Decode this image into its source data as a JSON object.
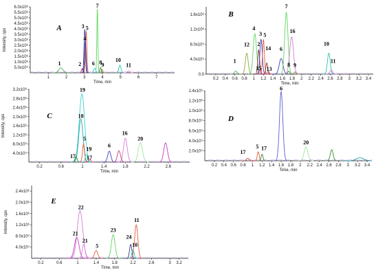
{
  "chart_data": [
    {
      "panel": "A",
      "type": "line",
      "xlabel": "Time, min",
      "ylabel": "Intensity, cps",
      "xlim": [
        0,
        8
      ],
      "ylim": [
        0,
        6000000
      ],
      "xticks": [
        1,
        2,
        3,
        4,
        5,
        6,
        7
      ],
      "yticks": [
        {
          "v": 500000,
          "t": "5.0x10⁵"
        },
        {
          "v": 1000000,
          "t": "1.0x10⁶"
        },
        {
          "v": 1500000,
          "t": "1.5x10⁶"
        },
        {
          "v": 2000000,
          "t": "2.0x10⁶"
        },
        {
          "v": 2500000,
          "t": "2.5x10⁶"
        },
        {
          "v": 3000000,
          "t": "3.0x10⁶"
        },
        {
          "v": 3500000,
          "t": "3.5x10⁶"
        },
        {
          "v": 4000000,
          "t": "4.0x10⁶"
        },
        {
          "v": 4500000,
          "t": "4.5x10⁶"
        },
        {
          "v": 5000000,
          "t": "5.0x10⁶"
        },
        {
          "v": 5500000,
          "t": "5.5x10⁶"
        },
        {
          "v": 6000000,
          "t": "6.0x10⁶"
        }
      ],
      "peaks": [
        {
          "label": "1",
          "x": 1.7,
          "y": 450000,
          "w": 0.12,
          "color": "#4caf50",
          "lx": 1.62,
          "ly": 700000
        },
        {
          "label": "2",
          "x": 2.88,
          "y": 380000,
          "w": 0.04,
          "color": "#8b2c2c",
          "lx": 2.75,
          "ly": 620000
        },
        {
          "label": "3",
          "x": 3.02,
          "y": 3950000,
          "w": 0.04,
          "color": "#3f3fbf",
          "lx": 2.92,
          "ly": 4050000
        },
        {
          "label": "5",
          "x": 3.1,
          "y": 3800000,
          "w": 0.04,
          "color": "#e05a3a",
          "lx": 3.15,
          "ly": 3900000
        },
        {
          "label": "4",
          "x": 3.05,
          "y": 2850000,
          "w": 0.04,
          "color": "#2f2f8f",
          "lx": 3.03,
          "ly": 2950000
        },
        {
          "label": "7",
          "x": 3.72,
          "y": 5800000,
          "w": 0.03,
          "color": "#5cd65c",
          "lx": 3.72,
          "ly": 5950000
        },
        {
          "label": "6",
          "x": 3.57,
          "y": 420000,
          "w": 0.06,
          "color": "#3ad1d1",
          "lx": 3.5,
          "ly": 680000
        },
        {
          "label": "8",
          "x": 3.9,
          "y": 480000,
          "w": 0.04,
          "color": "#2e8b2e",
          "lx": 3.9,
          "ly": 780000
        },
        {
          "label": "9",
          "x": 3.98,
          "y": 300000,
          "w": 0.04,
          "color": "#8f7a2e",
          "lx": 4.02,
          "ly": 560000
        },
        {
          "label": "10",
          "x": 4.97,
          "y": 700000,
          "w": 0.06,
          "color": "#26c6a6",
          "lx": 4.87,
          "ly": 1000000
        },
        {
          "label": "11",
          "x": 5.45,
          "y": 180000,
          "w": 0.06,
          "color": "#d67ad6",
          "lx": 5.45,
          "ly": 520000
        }
      ]
    },
    {
      "panel": "B",
      "type": "line",
      "xlabel": "Time, min",
      "ylabel": "",
      "xlim": [
        0,
        3.5
      ],
      "ylim": [
        0,
        1800000
      ],
      "xticks": [
        0.2,
        0.4,
        0.6,
        0.8,
        1.0,
        1.2,
        1.4,
        1.6,
        1.8,
        2.0,
        2.2,
        2.4,
        2.6,
        2.8,
        3.0,
        3.2,
        3.4
      ],
      "yticks": [
        {
          "v": 0,
          "t": "0.0"
        },
        {
          "v": 400000,
          "t": "4.0x10⁵"
        },
        {
          "v": 800000,
          "t": "8.0x10⁵"
        },
        {
          "v": 1200000,
          "t": "1.2x10⁶"
        },
        {
          "v": 1600000,
          "t": "1.6x10⁶"
        }
      ],
      "peaks": [
        {
          "label": "1",
          "x": 0.62,
          "y": 80000,
          "w": 0.03,
          "color": "#4caf50",
          "lx": 0.6,
          "ly": 300000
        },
        {
          "label": "12",
          "x": 0.85,
          "y": 560000,
          "w": 0.03,
          "color": "#8fa83a",
          "lx": 0.85,
          "ly": 740000
        },
        {
          "label": "4",
          "x": 1.02,
          "y": 1080000,
          "w": 0.035,
          "color": "#5cd65c",
          "lx": 1.0,
          "ly": 1180000
        },
        {
          "label": "2",
          "x": 1.1,
          "y": 650000,
          "w": 0.02,
          "color": "#8b2c2c",
          "lx": 1.1,
          "ly": 750000
        },
        {
          "label": "3",
          "x": 1.15,
          "y": 930000,
          "w": 0.025,
          "color": "#3f3fbf",
          "lx": 1.14,
          "ly": 1030000
        },
        {
          "label": "5",
          "x": 1.2,
          "y": 920000,
          "w": 0.02,
          "color": "#e05a3a",
          "lx": 1.23,
          "ly": 1000000
        },
        {
          "label": "15",
          "x": 1.13,
          "y": 120000,
          "w": 0.02,
          "color": "#c33c6e",
          "lx": 1.1,
          "ly": 110000
        },
        {
          "label": "14",
          "x": 1.27,
          "y": 300000,
          "w": 0.02,
          "color": "#8b2c2c",
          "lx": 1.3,
          "ly": 640000
        },
        {
          "label": "13",
          "x": 1.3,
          "y": 80000,
          "w": 0.02,
          "color": "#d04a4a",
          "lx": 1.32,
          "ly": 90000
        },
        {
          "label": "6",
          "x": 1.57,
          "y": 420000,
          "w": 0.04,
          "color": "#3f3fbf",
          "lx": 1.57,
          "ly": 620000
        },
        {
          "label": "7",
          "x": 1.68,
          "y": 1650000,
          "w": 0.035,
          "color": "#5cd65c",
          "lx": 1.68,
          "ly": 1760000
        },
        {
          "label": "16",
          "x": 1.79,
          "y": 1000000,
          "w": 0.04,
          "color": "#d67ad6",
          "lx": 1.81,
          "ly": 1100000
        },
        {
          "label": "8",
          "x": 1.73,
          "y": 80000,
          "w": 0.02,
          "color": "#2e8b2e",
          "lx": 1.73,
          "ly": 200000
        },
        {
          "label": "9",
          "x": 1.86,
          "y": 60000,
          "w": 0.02,
          "color": "#8f7a2e",
          "lx": 1.86,
          "ly": 190000
        },
        {
          "label": "10",
          "x": 2.57,
          "y": 560000,
          "w": 0.03,
          "color": "#26c6a6",
          "lx": 2.52,
          "ly": 760000
        },
        {
          "label": "11",
          "x": 2.62,
          "y": 110000,
          "w": 0.03,
          "color": "#d67ad6",
          "lx": 2.66,
          "ly": 300000
        }
      ]
    },
    {
      "panel": "C",
      "type": "line",
      "xlabel": "Time, min",
      "ylabel": "Intensity, cps",
      "xlim": [
        0,
        3
      ],
      "ylim": [
        0,
        3200000
      ],
      "xticks": [
        0.2,
        0.6,
        1.0,
        1.4,
        1.8,
        2.2,
        2.6
      ],
      "yticks": [
        {
          "v": 400000,
          "t": "4.0x10⁵"
        },
        {
          "v": 800000,
          "t": "8.0x10⁵"
        },
        {
          "v": 1200000,
          "t": "1.2x10⁶"
        },
        {
          "v": 1600000,
          "t": "1.6x10⁶"
        },
        {
          "v": 2000000,
          "t": "2.0x10⁶"
        },
        {
          "v": 2400000,
          "t": "2.4x10⁶"
        },
        {
          "v": 2800000,
          "t": "2.8x10⁶"
        },
        {
          "v": 3200000,
          "t": "3.2x10⁶"
        }
      ],
      "peaks": [
        {
          "label": "19",
          "x": 0.99,
          "y": 3000000,
          "w": 0.05,
          "color": "#3ad1d1",
          "lx": 1.0,
          "ly": 3100000
        },
        {
          "label": "18",
          "x": 0.97,
          "y": 1900000,
          "w": 0.04,
          "color": "#26a6a6",
          "lx": 0.97,
          "ly": 1950000
        },
        {
          "label": "5",
          "x": 1.02,
          "y": 800000,
          "w": 0.02,
          "color": "#e05a3a",
          "lx": 1.04,
          "ly": 950000
        },
        {
          "label": "19",
          "x": 1.07,
          "y": 350000,
          "w": 0.02,
          "color": "#3ad1d1",
          "lx": 1.12,
          "ly": 500000
        },
        {
          "label": "17",
          "x": 0.88,
          "y": 250000,
          "w": 0.02,
          "color": "#2e8b2e",
          "lx": 0.82,
          "ly": 180000
        },
        {
          "label": "17",
          "x": 1.14,
          "y": 120000,
          "w": 0.02,
          "color": "#d04a4a",
          "lx": 1.13,
          "ly": 120000
        },
        {
          "label": "6",
          "x": 1.5,
          "y": 480000,
          "w": 0.03,
          "color": "#3f3fbf",
          "lx": 1.5,
          "ly": 650000
        },
        {
          "label": "16",
          "x": 1.8,
          "y": 1050000,
          "w": 0.035,
          "color": "#d67ad6",
          "lx": 1.79,
          "ly": 1200000
        },
        {
          "label": "20",
          "x": 2.08,
          "y": 850000,
          "w": 0.04,
          "color": "#9ee89e",
          "lx": 2.08,
          "ly": 950000
        },
        {
          "label": "",
          "x": 1.68,
          "y": 500000,
          "w": 0.03,
          "color": "#c33c6e",
          "lx": 0,
          "ly": 0
        },
        {
          "label": "",
          "x": 2.55,
          "y": 850000,
          "w": 0.035,
          "color": "#c33cc3",
          "lx": 0,
          "ly": 0
        }
      ]
    },
    {
      "panel": "D",
      "type": "line",
      "xlabel": "Time, min",
      "ylabel": "",
      "xlim": [
        0,
        3.5
      ],
      "ylim": [
        0,
        1400000
      ],
      "xticks": [
        0.2,
        0.4,
        0.6,
        0.8,
        1.0,
        1.2,
        1.4,
        1.6,
        1.8,
        2.0,
        2.2,
        2.4,
        2.6,
        2.8,
        3.0,
        3.2,
        3.4
      ],
      "yticks": [
        {
          "v": 200000,
          "t": "2.0x10⁵"
        },
        {
          "v": 400000,
          "t": "4.0x10⁵"
        },
        {
          "v": 600000,
          "t": "6.0x10⁵"
        },
        {
          "v": 800000,
          "t": "8.0x10⁵"
        },
        {
          "v": 1000000,
          "t": "1.0x10⁶"
        },
        {
          "v": 1200000,
          "t": "1.2x10⁶"
        },
        {
          "v": 1400000,
          "t": "1.4x10⁶"
        }
      ],
      "peaks": [
        {
          "label": "6",
          "x": 1.6,
          "y": 1380000,
          "w": 0.035,
          "color": "#5a5ad6",
          "lx": 1.6,
          "ly": 1410000
        },
        {
          "label": "5",
          "x": 1.12,
          "y": 180000,
          "w": 0.02,
          "color": "#e05a3a",
          "lx": 1.1,
          "ly": 250000
        },
        {
          "label": "17",
          "x": 0.9,
          "y": 50000,
          "w": 0.03,
          "color": "#d04a4a",
          "lx": 0.8,
          "ly": 140000
        },
        {
          "label": "17",
          "x": 1.2,
          "y": 130000,
          "w": 0.02,
          "color": "#2e8b2e",
          "lx": 1.24,
          "ly": 210000
        },
        {
          "label": "20",
          "x": 2.12,
          "y": 280000,
          "w": 0.04,
          "color": "#9ee89e",
          "lx": 2.12,
          "ly": 330000
        },
        {
          "label": "",
          "x": 2.66,
          "y": 220000,
          "w": 0.03,
          "color": "#2e8b2e",
          "lx": 0,
          "ly": 0
        },
        {
          "label": "",
          "x": 3.25,
          "y": 60000,
          "w": 0.08,
          "color": "#26a6a6",
          "lx": 0,
          "ly": 0
        }
      ]
    },
    {
      "panel": "E",
      "type": "line",
      "xlabel": "Time, min",
      "ylabel": "Intensity, cps",
      "xlim": [
        0,
        3.4
      ],
      "ylim": [
        0,
        2600000
      ],
      "xticks": [
        0.2,
        0.6,
        1.0,
        1.4,
        1.8,
        2.2,
        2.6,
        3.0,
        3.2
      ],
      "yticks": [
        {
          "v": 400000,
          "t": "4.0x10⁵"
        },
        {
          "v": 800000,
          "t": "8.0x10⁵"
        },
        {
          "v": 1200000,
          "t": "1.2x10⁶"
        },
        {
          "v": 1600000,
          "t": "1.6x10⁶"
        },
        {
          "v": 2000000,
          "t": "2.0x10⁶"
        },
        {
          "v": 2400000,
          "t": "2.4x10⁶"
        }
      ],
      "peaks": [
        {
          "label": "22",
          "x": 1.05,
          "y": 1700000,
          "w": 0.06,
          "color": "#d67ad6",
          "lx": 1.07,
          "ly": 1750000
        },
        {
          "label": "21",
          "x": 0.98,
          "y": 750000,
          "w": 0.05,
          "color": "#c33cc3",
          "lx": 0.95,
          "ly": 820000
        },
        {
          "label": "21",
          "x": 1.13,
          "y": 500000,
          "w": 0.03,
          "color": "#e07ae0",
          "lx": 1.16,
          "ly": 560000
        },
        {
          "label": "5",
          "x": 1.4,
          "y": 280000,
          "w": 0.035,
          "color": "#e05a3a",
          "lx": 1.42,
          "ly": 380000
        },
        {
          "label": "23",
          "x": 1.77,
          "y": 850000,
          "w": 0.04,
          "color": "#5cd65c",
          "lx": 1.77,
          "ly": 950000
        },
        {
          "label": "24",
          "x": 2.15,
          "y": 500000,
          "w": 0.025,
          "color": "#2e2e8f",
          "lx": 2.11,
          "ly": 700000
        },
        {
          "label": "11",
          "x": 2.27,
          "y": 1200000,
          "w": 0.035,
          "color": "#e05a3a",
          "lx": 2.28,
          "ly": 1300000
        },
        {
          "label": "10",
          "x": 2.2,
          "y": 300000,
          "w": 0.025,
          "color": "#26c6a6",
          "lx": 2.24,
          "ly": 420000
        }
      ]
    }
  ]
}
